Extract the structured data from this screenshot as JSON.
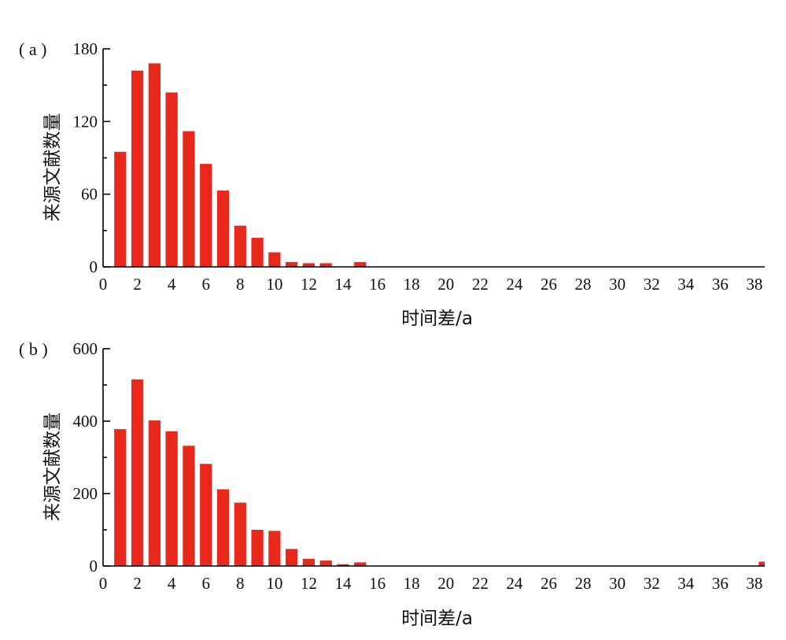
{
  "chart_data": [
    {
      "type": "bar",
      "panel_label": "( a )",
      "xlabel": "时间差/a",
      "ylabel": "来源文献数量",
      "x": [
        1,
        2,
        3,
        4,
        5,
        6,
        7,
        8,
        9,
        10,
        11,
        12,
        13,
        14,
        15
      ],
      "values": [
        95,
        162,
        168,
        144,
        112,
        85,
        63,
        34,
        24,
        12,
        4,
        3,
        3,
        0,
        4
      ],
      "xlim": [
        0,
        38.6
      ],
      "ylim": [
        0,
        180
      ],
      "xticks": [
        0,
        2,
        4,
        6,
        8,
        10,
        12,
        14,
        16,
        18,
        20,
        22,
        24,
        26,
        28,
        30,
        32,
        34,
        36,
        38
      ],
      "yticks": [
        0,
        60,
        120,
        180
      ],
      "color": "#e8281a",
      "grid": false
    },
    {
      "type": "bar",
      "panel_label": "( b )",
      "xlabel": "时间差/a",
      "ylabel": "来源文献数量",
      "x": [
        1,
        2,
        3,
        4,
        5,
        6,
        7,
        8,
        9,
        10,
        11,
        12,
        13,
        14,
        15,
        38.6
      ],
      "values": [
        378,
        515,
        402,
        372,
        332,
        282,
        212,
        175,
        100,
        97,
        47,
        20,
        15,
        5,
        10,
        12
      ],
      "xlim": [
        0,
        38.6
      ],
      "ylim": [
        0,
        600
      ],
      "xticks": [
        0,
        2,
        4,
        6,
        8,
        10,
        12,
        14,
        16,
        18,
        20,
        22,
        24,
        26,
        28,
        30,
        32,
        34,
        36,
        38
      ],
      "yticks": [
        0,
        200,
        400,
        600
      ],
      "color": "#e8281a",
      "grid": false
    }
  ]
}
